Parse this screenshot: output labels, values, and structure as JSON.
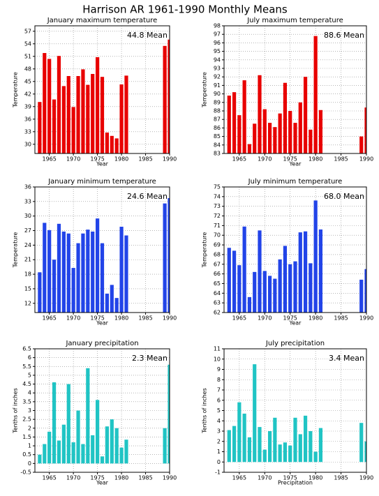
{
  "title": "Harrison AR  1961-1990 Monthly Means",
  "chart_data": [
    {
      "type": "bar",
      "title": "January maximum temperature",
      "xlabel": "Year",
      "ylabel": "Temperature",
      "annotation": "44.8 Mean",
      "color": "#e80000",
      "grid": true,
      "x": [
        1963,
        1964,
        1965,
        1966,
        1967,
        1968,
        1969,
        1970,
        1971,
        1972,
        1973,
        1974,
        1975,
        1976,
        1977,
        1978,
        1979,
        1980,
        1981,
        1989,
        1990
      ],
      "values": [
        40.1,
        51.8,
        50.4,
        40.7,
        51.1,
        43.9,
        46.3,
        38.9,
        46.3,
        47.9,
        44.2,
        46.8,
        50.8,
        46.1,
        32.8,
        32.0,
        31.4,
        44.3,
        46.4,
        53.5,
        55.0
      ],
      "xlim": [
        1962,
        1990
      ],
      "xticks": [
        1965,
        1970,
        1975,
        1980,
        1985,
        1990
      ],
      "ylim": [
        27.8,
        58.3
      ],
      "yticks": [
        30,
        33,
        36,
        39,
        42,
        45,
        48,
        51,
        54,
        57
      ]
    },
    {
      "type": "bar",
      "title": "July maximum temperature",
      "xlabel": "Year",
      "ylabel": "Temperature",
      "annotation": "88.6 Mean",
      "color": "#e80000",
      "grid": true,
      "x": [
        1963,
        1964,
        1965,
        1966,
        1967,
        1968,
        1969,
        1970,
        1971,
        1972,
        1973,
        1974,
        1975,
        1976,
        1977,
        1978,
        1979,
        1980,
        1981,
        1989,
        1990
      ],
      "values": [
        89.8,
        90.2,
        87.5,
        91.6,
        84.1,
        86.5,
        92.2,
        88.2,
        86.6,
        86.1,
        87.7,
        91.3,
        88.0,
        86.6,
        89.0,
        92.0,
        85.8,
        96.8,
        88.1,
        85.0,
        88.4
      ],
      "xlim": [
        1962,
        1990
      ],
      "xticks": [
        1965,
        1970,
        1975,
        1980,
        1985,
        1990
      ],
      "ylim": [
        83,
        98
      ],
      "yticks": [
        83,
        84,
        85,
        86,
        87,
        88,
        89,
        90,
        91,
        92,
        93,
        94,
        95,
        96,
        97,
        98
      ]
    },
    {
      "type": "bar",
      "title": "January minimum temperature",
      "xlabel": "Year",
      "ylabel": "Temperature",
      "annotation": "24.6 Mean",
      "color": "#2244e8",
      "grid": true,
      "x": [
        1963,
        1964,
        1965,
        1966,
        1967,
        1968,
        1969,
        1970,
        1971,
        1972,
        1973,
        1974,
        1975,
        1976,
        1977,
        1978,
        1979,
        1980,
        1981,
        1989,
        1990
      ],
      "values": [
        18.4,
        28.6,
        27.1,
        21.0,
        28.4,
        26.8,
        26.4,
        19.3,
        24.4,
        26.4,
        27.2,
        26.8,
        29.5,
        24.4,
        14.0,
        15.8,
        13.1,
        27.8,
        26.0,
        32.6,
        33.7
      ],
      "xlim": [
        1962,
        1990
      ],
      "xticks": [
        1965,
        1970,
        1975,
        1980,
        1985,
        1990
      ],
      "ylim": [
        10.1,
        36
      ],
      "yticks": [
        12,
        15,
        18,
        21,
        24,
        27,
        30,
        33,
        36
      ]
    },
    {
      "type": "bar",
      "title": "July minimum temperature",
      "xlabel": "Year",
      "ylabel": "Temperature",
      "annotation": "68.0 Mean",
      "color": "#2244e8",
      "grid": true,
      "x": [
        1963,
        1964,
        1965,
        1966,
        1967,
        1968,
        1969,
        1970,
        1971,
        1972,
        1973,
        1974,
        1975,
        1976,
        1977,
        1978,
        1979,
        1980,
        1981,
        1989,
        1990
      ],
      "values": [
        68.7,
        68.4,
        66.9,
        70.9,
        63.6,
        66.2,
        70.5,
        66.3,
        65.8,
        65.5,
        67.5,
        68.9,
        67.0,
        67.3,
        70.3,
        70.4,
        67.1,
        73.6,
        70.6,
        65.4,
        66.5
      ],
      "xlim": [
        1962,
        1990
      ],
      "xticks": [
        1965,
        1970,
        1975,
        1980,
        1985,
        1990
      ],
      "ylim": [
        62,
        75
      ],
      "yticks": [
        62,
        63,
        64,
        65,
        66,
        67,
        68,
        69,
        70,
        71,
        72,
        73,
        74,
        75
      ]
    },
    {
      "type": "bar",
      "title": "January precipitation",
      "xlabel": "Year",
      "ylabel": "Tenths of inches",
      "annotation": "2.3 Mean",
      "color": "#20c4c4",
      "grid": true,
      "x": [
        1963,
        1964,
        1965,
        1966,
        1967,
        1968,
        1969,
        1970,
        1971,
        1972,
        1973,
        1974,
        1975,
        1976,
        1977,
        1978,
        1979,
        1980,
        1981,
        1989,
        1990
      ],
      "values": [
        0.5,
        1.1,
        1.8,
        4.6,
        1.3,
        2.2,
        4.5,
        1.2,
        3.0,
        1.1,
        5.4,
        1.6,
        3.6,
        0.4,
        2.1,
        2.5,
        2.0,
        0.9,
        1.35,
        2.0,
        5.6
      ],
      "xlim": [
        1962,
        1990
      ],
      "xticks": [
        1965,
        1970,
        1975,
        1980,
        1985,
        1990
      ],
      "ylim": [
        -0.5,
        6.5
      ],
      "yticks": [
        -0.5,
        0,
        0.5,
        1,
        1.5,
        2,
        2.5,
        3,
        3.5,
        4,
        4.5,
        5,
        5.5,
        6,
        6.5
      ]
    },
    {
      "type": "bar",
      "title": "July precipitation",
      "xlabel": "Precipitation",
      "ylabel": "Tenths of inches",
      "annotation": "3.4 Mean",
      "color": "#20c4c4",
      "grid": true,
      "x": [
        1963,
        1964,
        1965,
        1966,
        1967,
        1968,
        1969,
        1970,
        1971,
        1972,
        1973,
        1974,
        1975,
        1976,
        1977,
        1978,
        1979,
        1980,
        1981,
        1989,
        1990
      ],
      "values": [
        3.1,
        3.5,
        5.8,
        4.7,
        2.4,
        9.5,
        3.4,
        1.2,
        3.0,
        4.3,
        1.7,
        1.9,
        1.6,
        4.3,
        2.7,
        4.5,
        3.0,
        1.0,
        3.3,
        3.8,
        2.0
      ],
      "xlim": [
        1962,
        1990
      ],
      "xticks": [
        1965,
        1970,
        1975,
        1980,
        1985,
        1990
      ],
      "ylim": [
        -1,
        11
      ],
      "yticks": [
        -1,
        0,
        1,
        2,
        3,
        4,
        5,
        6,
        7,
        8,
        9,
        10,
        11
      ]
    }
  ]
}
